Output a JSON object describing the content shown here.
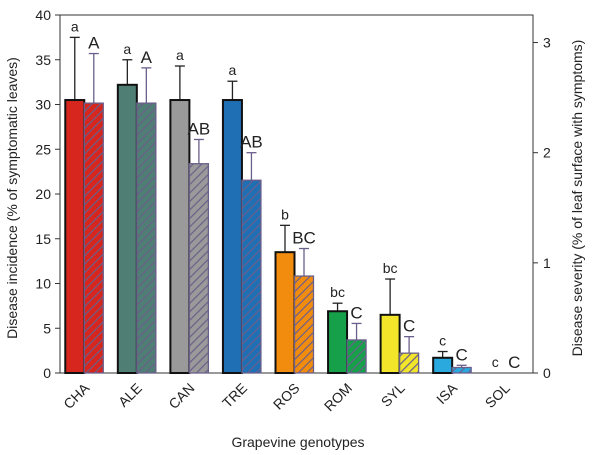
{
  "chart_data": {
    "type": "bar",
    "xlabel": "Grapevine genotypes",
    "ylabel_left": "Disease incidence (% of symptomatic leaves)",
    "ylabel_right": "Disease severity (% of leaf surface with symptoms)",
    "ylim_left": [
      0,
      40
    ],
    "ylim_right": [
      0,
      3.25
    ],
    "yticks_left": [
      0,
      5,
      10,
      15,
      20,
      25,
      30,
      35,
      40
    ],
    "yticks_right": [
      0,
      1,
      2,
      3
    ],
    "grid": false,
    "categories": [
      "CHA",
      "ALE",
      "CAN",
      "TRE",
      "ROS",
      "ROM",
      "SYL",
      "ISA",
      "SOL"
    ],
    "colors": [
      "#d7261e",
      "#4f7f74",
      "#9a9a9a",
      "#1f6fb5",
      "#f28c0f",
      "#17a04a",
      "#f3e62a",
      "#2aa9df",
      "#cccccc"
    ],
    "series": [
      {
        "name": "",
        "axis": "left",
        "pattern": "solid",
        "values": [
          30.5,
          32.2,
          30.5,
          30.5,
          13.5,
          6.9,
          6.5,
          1.7,
          0
        ],
        "errors": [
          7.0,
          2.8,
          3.8,
          2.1,
          3.0,
          0.9,
          4.0,
          0.7,
          0
        ],
        "letters": [
          "a",
          "a",
          "a",
          "a",
          "b",
          "bc",
          "bc",
          "c",
          "c"
        ]
      },
      {
        "name": "",
        "axis": "right",
        "pattern": "hatched",
        "values": [
          2.45,
          2.45,
          1.9,
          1.75,
          0.88,
          0.3,
          0.18,
          0.05,
          0
        ],
        "errors": [
          0.45,
          0.32,
          0.22,
          0.25,
          0.25,
          0.15,
          0.15,
          0.02,
          0
        ],
        "letters": [
          "A",
          "A",
          "AB",
          "AB",
          "BC",
          "C",
          "C",
          "C",
          "C"
        ]
      }
    ]
  }
}
